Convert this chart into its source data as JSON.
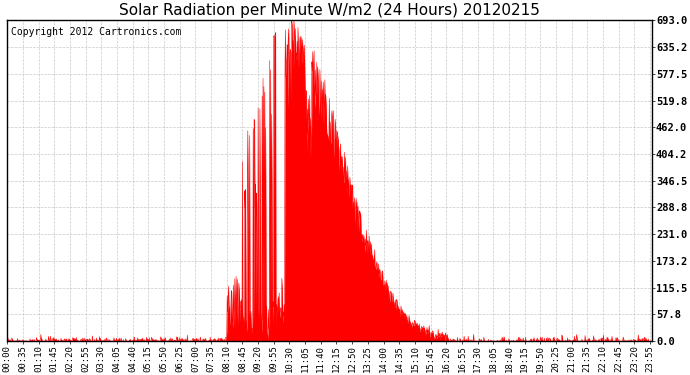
{
  "title": "Solar Radiation per Minute W/m2 (24 Hours) 20120215",
  "copyright_text": "Copyright 2012 Cartronics.com",
  "yticks": [
    0.0,
    57.8,
    115.5,
    173.2,
    231.0,
    288.8,
    346.5,
    404.2,
    462.0,
    519.8,
    577.5,
    635.2,
    693.0
  ],
  "ymax": 693.0,
  "ymin": 0.0,
  "fill_color": "#FF0000",
  "line_color": "#FF0000",
  "bg_color": "#FFFFFF",
  "grid_color": "#BBBBBB",
  "dashed_line_color": "#FF0000",
  "title_fontsize": 11,
  "copyright_fontsize": 7,
  "tick_fontsize": 6.5,
  "ytick_fontsize": 7.5
}
